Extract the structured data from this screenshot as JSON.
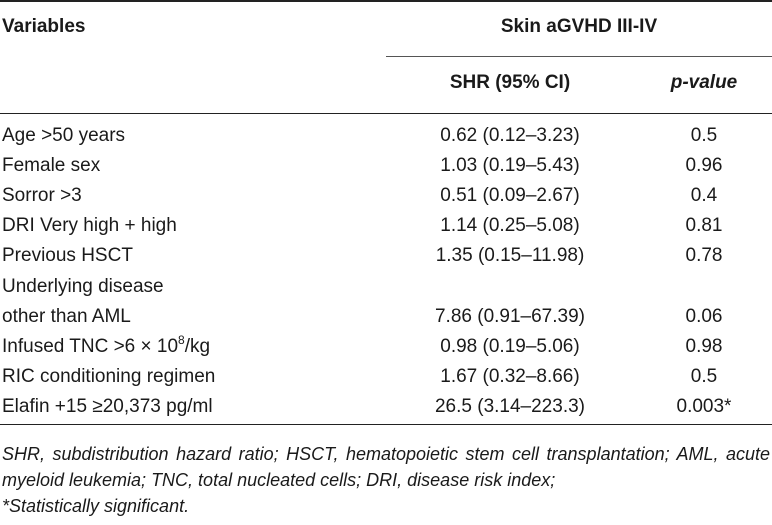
{
  "table": {
    "header_variables": "Variables",
    "header_group": "Skin aGVHD III-IV",
    "header_shr": "SHR (95% CI)",
    "header_p": "p-value",
    "rows": [
      {
        "variable": "Age >50 years",
        "shr": "0.62 (0.12–3.23)",
        "p": "0.5"
      },
      {
        "variable": "Female sex",
        "shr": "1.03 (0.19–5.43)",
        "p": "0.96"
      },
      {
        "variable": "Sorror >3",
        "shr": "0.51 (0.09–2.67)",
        "p": "0.4"
      },
      {
        "variable": "DRI Very high + high",
        "shr": "1.14 (0.25–5.08)",
        "p": "0.81"
      },
      {
        "variable": "Previous HSCT",
        "shr": "1.35 (0.15–11.98)",
        "p": "0.78"
      },
      {
        "variable": "Underlying disease",
        "shr": "",
        "p": ""
      },
      {
        "variable": "other than AML",
        "shr": "7.86 (0.91–67.39)",
        "p": "0.06"
      },
      {
        "variable_prefix": "Infused TNC >6 × 10",
        "variable_sup": "8",
        "variable_suffix": "/kg",
        "shr": "0.98 (0.19–5.06)",
        "p": "0.98"
      },
      {
        "variable": "RIC conditioning regimen",
        "shr": "1.67 (0.32–8.66)",
        "p": "0.5"
      },
      {
        "variable": "Elafin +15 ≥20,373 pg/ml",
        "shr": "26.5 (3.14–223.3)",
        "p": "0.003*"
      }
    ]
  },
  "footnote": {
    "abbreviations": "SHR, subdistribution hazard ratio; HSCT, hematopoietic stem cell transplantation; AML, acute myeloid leukemia; TNC, total nucleated cells; DRI, disease risk index;",
    "significance": "*Statistically significant."
  }
}
